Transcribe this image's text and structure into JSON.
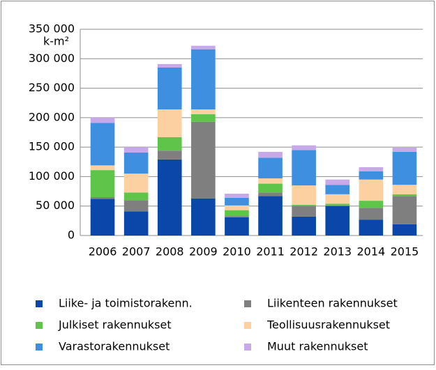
{
  "chart_data": {
    "type": "stacked_bar",
    "y_unit": "k-m²",
    "categories": [
      "2006",
      "2007",
      "2008",
      "2009",
      "2010",
      "2011",
      "2012",
      "2013",
      "2014",
      "2015"
    ],
    "series": [
      {
        "name": "Liike- ja toimistorakenn.",
        "color": "#0a47a8",
        "values": [
          62000,
          41000,
          129000,
          63000,
          31000,
          67000,
          32000,
          50000,
          27000,
          19000
        ]
      },
      {
        "name": "Liikenteen rakennukset",
        "color": "#7f7f7f",
        "values": [
          3000,
          19000,
          15000,
          130000,
          2000,
          6000,
          18000,
          1000,
          20000,
          48000
        ]
      },
      {
        "name": "Julkiset rakennukset",
        "color": "#5fc44a",
        "values": [
          46000,
          13000,
          23000,
          13000,
          10000,
          15000,
          2000,
          3000,
          12000,
          3000
        ]
      },
      {
        "name": "Teollisuusrakennukset",
        "color": "#fcd0a0",
        "values": [
          8000,
          32000,
          47000,
          8000,
          8000,
          9000,
          33000,
          16000,
          36000,
          16000
        ]
      },
      {
        "name": "Varastorakennukset",
        "color": "#3e8fe0",
        "values": [
          72000,
          36000,
          71000,
          102000,
          13000,
          35000,
          60000,
          16000,
          14000,
          56000
        ]
      },
      {
        "name": "Muut rakennukset",
        "color": "#c7a8e8",
        "values": [
          9000,
          9000,
          6000,
          6000,
          7000,
          10000,
          8000,
          9000,
          7000,
          7000
        ]
      }
    ],
    "ylim": [
      0,
      350000
    ],
    "yticks": [
      0,
      {
        "value": 50000,
        "label": "50 000"
      },
      {
        "value": 100000,
        "label": "100 000"
      },
      {
        "value": 150000,
        "label": "150 000"
      },
      {
        "value": 200000,
        "label": "200 000"
      },
      {
        "value": 250000,
        "label": "250 000"
      },
      {
        "value": 300000,
        "label": "300 000"
      },
      {
        "value": 350000,
        "label": "350 000"
      }
    ],
    "grid": true,
    "legend": "bottom"
  }
}
